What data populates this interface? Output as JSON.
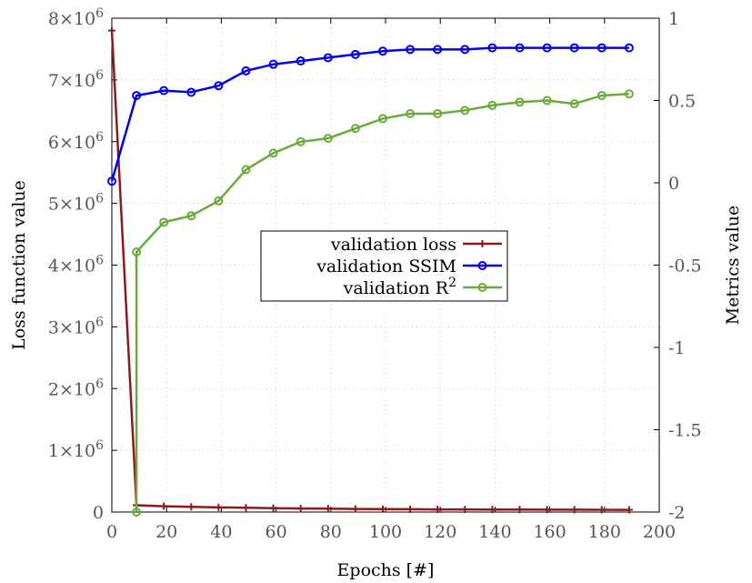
{
  "chart_data": {
    "type": "line",
    "xlabel": "Epochs [#]",
    "ylabel_left": "Loss function value",
    "ylabel_right": "Metrics value",
    "xlim": [
      0,
      200
    ],
    "ylim_left": [
      0,
      8000000
    ],
    "ylim_right": [
      -2,
      1
    ],
    "grid": true,
    "legend_position": "center",
    "x_ticks": [
      "0",
      "20",
      "40",
      "60",
      "80",
      "100",
      "120",
      "140",
      "160",
      "180",
      "200"
    ],
    "y_left_ticks": [
      {
        "base": "0",
        "exp": ""
      },
      {
        "base": "1×10",
        "exp": "6"
      },
      {
        "base": "2×10",
        "exp": "6"
      },
      {
        "base": "3×10",
        "exp": "6"
      },
      {
        "base": "4×10",
        "exp": "6"
      },
      {
        "base": "5×10",
        "exp": "6"
      },
      {
        "base": "6×10",
        "exp": "6"
      },
      {
        "base": "7×10",
        "exp": "6"
      },
      {
        "base": "8×10",
        "exp": "6"
      }
    ],
    "y_right_ticks": [
      "1",
      "0.5",
      "0",
      "-0.5",
      "-1",
      "-1.5",
      "-2"
    ],
    "series": [
      {
        "name": "validation loss",
        "name_sup": "",
        "axis": "left",
        "color": "#8b1a1a",
        "marker": "plus",
        "x": [
          0,
          9,
          19,
          29,
          39,
          49,
          59,
          69,
          79,
          89,
          99,
          109,
          119,
          129,
          139,
          149,
          159,
          169,
          179,
          189
        ],
        "values": [
          7800000,
          110000,
          95000,
          85000,
          75000,
          70000,
          62000,
          58000,
          55000,
          50000,
          48000,
          45000,
          43000,
          42000,
          41000,
          40000,
          39000,
          38000,
          37000,
          36000
        ]
      },
      {
        "name": "validation SSIM",
        "name_sup": "",
        "axis": "right",
        "color": "#0000ee",
        "marker": "circle",
        "x": [
          0,
          9,
          19,
          29,
          39,
          49,
          59,
          69,
          79,
          89,
          99,
          109,
          119,
          129,
          139,
          149,
          159,
          169,
          179,
          189
        ],
        "values": [
          0.01,
          0.53,
          0.56,
          0.55,
          0.59,
          0.68,
          0.72,
          0.74,
          0.76,
          0.78,
          0.8,
          0.81,
          0.81,
          0.81,
          0.82,
          0.82,
          0.82,
          0.82,
          0.82,
          0.82
        ]
      },
      {
        "name": "validation R",
        "name_sup": "2",
        "axis": "right",
        "color": "#6aab3c",
        "marker": "circle",
        "x": [
          9,
          9,
          19,
          29,
          39,
          49,
          59,
          69,
          79,
          89,
          99,
          109,
          119,
          129,
          139,
          149,
          159,
          169,
          179,
          189
        ],
        "values": [
          -2.0,
          -0.42,
          -0.24,
          -0.2,
          -0.11,
          0.08,
          0.18,
          0.25,
          0.27,
          0.33,
          0.39,
          0.42,
          0.42,
          0.44,
          0.47,
          0.49,
          0.5,
          0.48,
          0.53,
          0.54
        ]
      }
    ]
  }
}
